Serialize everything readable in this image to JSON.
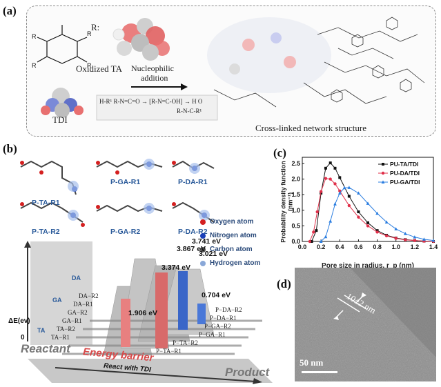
{
  "panel_a": {
    "label": "(a)",
    "r_label": "R:",
    "oxidized_ta": "Oxidized TA",
    "tdi": "TDI",
    "reaction_line1": "Nucleophilic",
    "reaction_line2": "addition",
    "network_caption": "Cross-linked network structure",
    "mechanism_text": "H-R¹   R-N=C=O → [R-N=C-OH] → H O",
    "mechanism_product": "R-N-C-R¹"
  },
  "panel_b": {
    "label": "(b)",
    "molecules": [
      "P-TA-R1",
      "P-GA-R1",
      "P-DA-R1",
      "P-TA-R2",
      "P-GA-R2",
      "P-DA-R2"
    ],
    "legend": [
      "Oxygen atom",
      "Nitrogen atom",
      "Carbon atom",
      "Hydrogen atom"
    ],
    "legend_colors": [
      "#d42020",
      "#1a3fb8",
      "#555555",
      "#8aa8d8"
    ],
    "energies": [
      "1.906 eV",
      "3.374 eV",
      "3.867 eV",
      "3.741 eV",
      "3.021 eV",
      "0.704 eV"
    ],
    "y_axis": "ΔE(ev)",
    "zero": "0",
    "reactant": "Reactant",
    "product": "Product",
    "energy_barrier": "Energy barrier",
    "react_with": "React with TDI",
    "left_rows": [
      "DA−R2",
      "DA−R1",
      "GA−R2",
      "GA−R1",
      "TA−R2",
      "TA−R1"
    ],
    "right_rows": [
      "P−DA−R2",
      "P−DA−R1",
      "P−GA−R2",
      "P−GA−R1",
      "P−TA−R2",
      "P−TA−R1"
    ],
    "reactant_labels": [
      "TA",
      "GA",
      "DA"
    ]
  },
  "panel_c": {
    "label": "(c)",
    "chart_data": {
      "type": "scatter",
      "xlabel": "Pore size in radius, r_p (nm)",
      "ylabel": "Probability density function (nm⁻¹)",
      "xlim": [
        0,
        1.4
      ],
      "ylim": [
        0,
        2.7
      ],
      "xticks": [
        "0.0",
        "0.2",
        "0.4",
        "0.6",
        "0.8",
        "1.0",
        "1.2",
        "1.4"
      ],
      "yticks": [
        "0.0",
        "0.5",
        "1.0",
        "1.5",
        "2.0",
        "2.5"
      ],
      "series": [
        {
          "name": "PU-TA/TDI",
          "color": "#111111",
          "marker": "square",
          "peak_x": 0.3,
          "peak_y": 2.52,
          "x": [
            0.1,
            0.15,
            0.2,
            0.25,
            0.3,
            0.35,
            0.4,
            0.5,
            0.6,
            0.7,
            0.8,
            0.9,
            1.0,
            1.1,
            1.2,
            1.3,
            1.4
          ],
          "y": [
            0.0,
            0.35,
            1.55,
            2.35,
            2.52,
            2.35,
            2.05,
            1.45,
            0.95,
            0.6,
            0.35,
            0.2,
            0.11,
            0.06,
            0.03,
            0.01,
            0.0
          ]
        },
        {
          "name": "PU-DA/TDI",
          "color": "#e0304a",
          "marker": "circle",
          "peak_x": 0.27,
          "peak_y": 2.04,
          "x": [
            0.08,
            0.12,
            0.16,
            0.2,
            0.25,
            0.3,
            0.35,
            0.4,
            0.5,
            0.6,
            0.7,
            0.8,
            0.9,
            1.0,
            1.1,
            1.2,
            1.3,
            1.4
          ],
          "y": [
            0.0,
            0.3,
            0.95,
            1.6,
            2.02,
            2.0,
            1.85,
            1.62,
            1.15,
            0.78,
            0.5,
            0.3,
            0.18,
            0.1,
            0.05,
            0.03,
            0.01,
            0.0
          ]
        },
        {
          "name": "PU-GA/TDI",
          "color": "#2a7de0",
          "marker": "triangle",
          "peak_x": 0.48,
          "peak_y": 1.74,
          "x": [
            0.2,
            0.25,
            0.3,
            0.35,
            0.4,
            0.45,
            0.5,
            0.6,
            0.7,
            0.8,
            0.9,
            1.0,
            1.1,
            1.2,
            1.3,
            1.4
          ],
          "y": [
            0.0,
            0.15,
            0.65,
            1.2,
            1.55,
            1.72,
            1.73,
            1.55,
            1.22,
            0.9,
            0.62,
            0.4,
            0.25,
            0.14,
            0.07,
            0.03
          ]
        }
      ]
    }
  },
  "panel_d": {
    "label": "(d)",
    "measure": "10±2 nm",
    "scale_bar": "50 nm"
  }
}
